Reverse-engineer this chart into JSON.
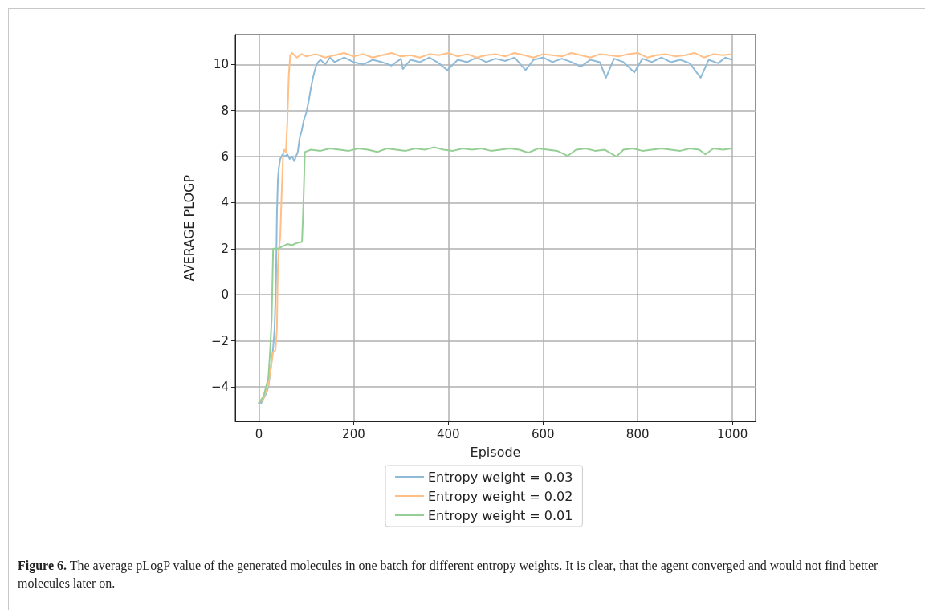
{
  "chart_data": {
    "type": "line",
    "xlabel": "Episode",
    "ylabel": "AVERAGE PLOGP",
    "xlim": [
      -50,
      1049
    ],
    "ylim": [
      -5.5,
      11.3
    ],
    "xticks": [
      0,
      200,
      400,
      600,
      800,
      1000
    ],
    "yticks": [
      -4,
      -2,
      0,
      2,
      4,
      6,
      8,
      10
    ],
    "grid": true,
    "legend": "bottom",
    "marker": "none",
    "line_style": "solid",
    "series": [
      {
        "name": "Entropy weight = 0.03",
        "color": "#8fbbd9",
        "x": [
          0,
          5,
          10,
          15,
          20,
          25,
          30,
          33,
          36,
          38,
          40,
          42,
          45,
          50,
          55,
          60,
          65,
          70,
          75,
          78,
          82,
          86,
          90,
          95,
          100,
          105,
          110,
          115,
          120,
          125,
          130,
          140,
          150,
          160,
          180,
          200,
          220,
          240,
          260,
          280,
          300,
          304,
          320,
          340,
          360,
          380,
          398,
          420,
          440,
          460,
          480,
          500,
          520,
          540,
          563,
          580,
          600,
          620,
          640,
          660,
          680,
          700,
          720,
          733,
          750,
          770,
          793,
          810,
          830,
          850,
          870,
          890,
          910,
          933,
          950,
          970,
          985,
          999
        ],
        "values": [
          -4.7,
          -4.7,
          -4.5,
          -4.3,
          -4.0,
          -3.2,
          -2.3,
          -1.5,
          0.5,
          3.5,
          5.0,
          5.5,
          5.9,
          6.1,
          6.0,
          6.1,
          5.9,
          6.0,
          5.8,
          6.0,
          6.2,
          6.8,
          7.1,
          7.6,
          7.9,
          8.4,
          9.0,
          9.5,
          9.9,
          10.1,
          10.2,
          10.0,
          10.3,
          10.1,
          10.3,
          10.1,
          10.0,
          10.2,
          10.1,
          9.95,
          10.25,
          9.8,
          10.2,
          10.1,
          10.3,
          10.05,
          9.75,
          10.2,
          10.1,
          10.3,
          10.1,
          10.25,
          10.15,
          10.3,
          9.75,
          10.2,
          10.3,
          10.1,
          10.25,
          10.1,
          9.9,
          10.2,
          10.1,
          9.42,
          10.25,
          10.1,
          9.65,
          10.25,
          10.1,
          10.3,
          10.1,
          10.2,
          10.05,
          9.42,
          10.2,
          10.05,
          10.3,
          10.2
        ]
      },
      {
        "name": "Entropy weight = 0.02",
        "color": "#ffbf86",
        "x": [
          0,
          10,
          20,
          25,
          30,
          35,
          38,
          40,
          42,
          45,
          48,
          51,
          53,
          57,
          60,
          63,
          66,
          70,
          80,
          90,
          100,
          120,
          140,
          160,
          180,
          200,
          220,
          240,
          260,
          280,
          300,
          320,
          340,
          360,
          380,
          400,
          420,
          440,
          460,
          480,
          500,
          520,
          540,
          560,
          580,
          600,
          620,
          640,
          660,
          680,
          700,
          720,
          740,
          760,
          780,
          800,
          820,
          840,
          860,
          880,
          900,
          920,
          940,
          960,
          980,
          999
        ],
        "values": [
          -4.7,
          -4.5,
          -3.9,
          -3.2,
          -2.5,
          -2.4,
          -1.5,
          1.2,
          1.9,
          2.5,
          4.4,
          6.0,
          6.3,
          6.2,
          7.5,
          9.5,
          10.4,
          10.5,
          10.3,
          10.45,
          10.35,
          10.45,
          10.3,
          10.4,
          10.5,
          10.35,
          10.45,
          10.3,
          10.4,
          10.5,
          10.35,
          10.4,
          10.3,
          10.45,
          10.4,
          10.5,
          10.35,
          10.45,
          10.3,
          10.4,
          10.45,
          10.35,
          10.5,
          10.4,
          10.3,
          10.45,
          10.4,
          10.35,
          10.5,
          10.4,
          10.3,
          10.45,
          10.4,
          10.35,
          10.45,
          10.5,
          10.3,
          10.4,
          10.45,
          10.35,
          10.4,
          10.5,
          10.3,
          10.45,
          10.4,
          10.45
        ]
      },
      {
        "name": "Entropy weight = 0.01",
        "color": "#95cf95",
        "x": [
          0,
          10,
          20,
          24,
          27,
          30,
          35,
          40,
          50,
          60,
          70,
          80,
          91,
          94,
          97,
          110,
          130,
          150,
          170,
          190,
          210,
          230,
          250,
          270,
          290,
          310,
          330,
          350,
          370,
          390,
          410,
          430,
          450,
          470,
          490,
          510,
          530,
          550,
          569,
          590,
          610,
          630,
          652,
          670,
          690,
          710,
          730,
          755,
          770,
          790,
          810,
          830,
          850,
          870,
          890,
          910,
          930,
          943,
          960,
          980,
          999
        ],
        "values": [
          -4.7,
          -4.4,
          -3.6,
          -2.3,
          -1.0,
          2.0,
          2.0,
          2.0,
          2.1,
          2.2,
          2.15,
          2.25,
          2.3,
          4.0,
          6.2,
          6.3,
          6.25,
          6.35,
          6.3,
          6.25,
          6.35,
          6.3,
          6.2,
          6.35,
          6.3,
          6.25,
          6.35,
          6.3,
          6.4,
          6.3,
          6.25,
          6.35,
          6.3,
          6.35,
          6.25,
          6.3,
          6.35,
          6.3,
          6.17,
          6.35,
          6.3,
          6.25,
          6.03,
          6.3,
          6.35,
          6.25,
          6.3,
          6.0,
          6.3,
          6.35,
          6.25,
          6.3,
          6.35,
          6.3,
          6.25,
          6.35,
          6.3,
          6.1,
          6.35,
          6.3,
          6.35
        ]
      }
    ],
    "annotations": [
      "Figure 6. The average pLogP value of the generated molecules in one batch for different entropy weights. It is clear, that the agent converged and would not find better molecules later on."
    ]
  }
}
